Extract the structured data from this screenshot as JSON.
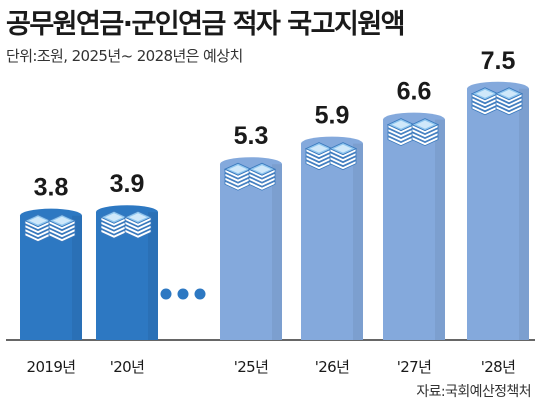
{
  "chart_data": {
    "type": "bar",
    "title": "공무원연금·군인연금 적자 국고지원액",
    "subtitle": "단위:조원, 2025년~ 2028년은 예상치",
    "categories": [
      "2019년",
      "'20년",
      "'25년",
      "'26년",
      "'27년",
      "'28년"
    ],
    "values": [
      3.8,
      3.9,
      5.3,
      5.9,
      6.6,
      7.5
    ],
    "value_labels": [
      "3.8",
      "3.9",
      "5.3",
      "5.9",
      "6.6",
      "7.5"
    ],
    "projected": [
      false,
      false,
      true,
      true,
      true,
      true
    ],
    "axis_break_after_index": 1,
    "source": "자료:국회예산정책처",
    "colors": {
      "actual": "#2d78c2",
      "projected": "#84a9dc",
      "baseline": "#333333"
    }
  }
}
